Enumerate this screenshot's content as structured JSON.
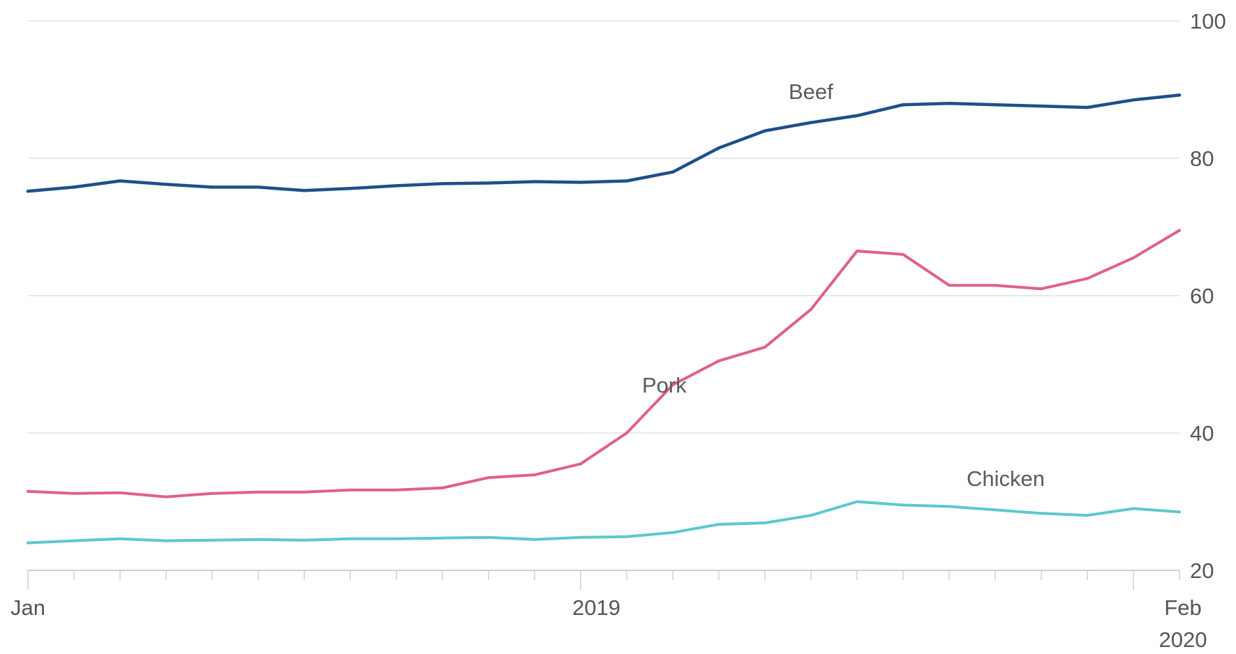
{
  "chart_data": {
    "type": "line",
    "x_start": "2018-01",
    "x_end": "2020-02",
    "y_axis_position": "right",
    "ylim": [
      20,
      100
    ],
    "yticks": [
      "20",
      "40",
      "60",
      "80",
      "100"
    ],
    "xticks": [
      {
        "label": "Jan",
        "sublabel": ""
      },
      {
        "label": "2019",
        "sublabel": ""
      },
      {
        "label": "Feb",
        "sublabel": "2020"
      }
    ],
    "grid": true,
    "series": [
      {
        "name": "Beef",
        "color": "#1f4e8c",
        "x": [
          "2018-01",
          "2018-02",
          "2018-03",
          "2018-04",
          "2018-05",
          "2018-06",
          "2018-07",
          "2018-08",
          "2018-09",
          "2018-10",
          "2018-11",
          "2018-12",
          "2019-01",
          "2019-02",
          "2019-03",
          "2019-04",
          "2019-05",
          "2019-06",
          "2019-07",
          "2019-08",
          "2019-09",
          "2019-10",
          "2019-11",
          "2019-12",
          "2020-01",
          "2020-02"
        ],
        "values": [
          75.2,
          75.8,
          76.7,
          76.2,
          75.8,
          75.8,
          75.3,
          75.6,
          76.0,
          76.3,
          76.4,
          76.6,
          76.5,
          76.7,
          78.0,
          81.5,
          84.0,
          85.2,
          86.2,
          87.8,
          88.0,
          87.8,
          87.6,
          87.4,
          88.5,
          89.2
        ]
      },
      {
        "name": "Pork",
        "color": "#e0608a",
        "x": [
          "2018-01",
          "2018-02",
          "2018-03",
          "2018-04",
          "2018-05",
          "2018-06",
          "2018-07",
          "2018-08",
          "2018-09",
          "2018-10",
          "2018-11",
          "2018-12",
          "2019-01",
          "2019-02",
          "2019-03",
          "2019-04",
          "2019-05",
          "2019-06",
          "2019-07",
          "2019-08",
          "2019-09",
          "2019-10",
          "2019-11",
          "2019-12",
          "2020-01",
          "2020-02"
        ],
        "values": [
          31.5,
          31.2,
          31.3,
          30.7,
          31.2,
          31.4,
          31.4,
          31.7,
          31.7,
          32.0,
          33.5,
          33.9,
          35.5,
          40.0,
          47.0,
          50.5,
          52.5,
          58.0,
          66.5,
          66.0,
          61.5,
          61.5,
          61.0,
          62.5,
          65.5,
          69.5
        ]
      },
      {
        "name": "Chicken",
        "color": "#5cc8cc",
        "x": [
          "2018-01",
          "2018-02",
          "2018-03",
          "2018-04",
          "2018-05",
          "2018-06",
          "2018-07",
          "2018-08",
          "2018-09",
          "2018-10",
          "2018-11",
          "2018-12",
          "2019-01",
          "2019-02",
          "2019-03",
          "2019-04",
          "2019-05",
          "2019-06",
          "2019-07",
          "2019-08",
          "2019-09",
          "2019-10",
          "2019-11",
          "2019-12",
          "2020-01",
          "2020-02"
        ],
        "values": [
          24.0,
          24.3,
          24.6,
          24.3,
          24.4,
          24.5,
          24.4,
          24.6,
          24.6,
          24.7,
          24.8,
          24.5,
          24.8,
          24.9,
          25.5,
          26.7,
          26.9,
          28.0,
          30.0,
          29.5,
          29.3,
          28.8,
          28.3,
          28.0,
          29.0,
          28.5
        ]
      }
    ]
  }
}
